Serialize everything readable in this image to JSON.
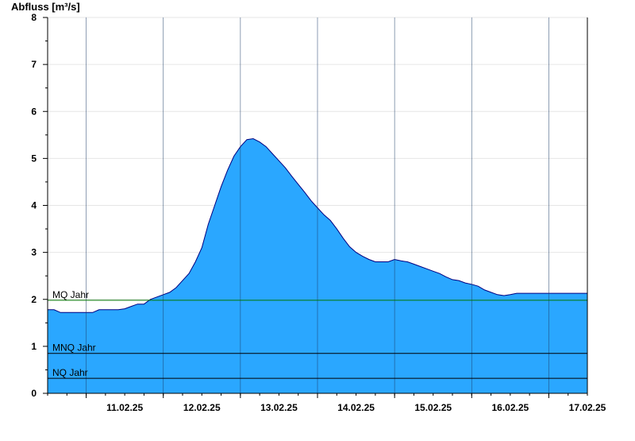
{
  "chart_data": {
    "type": "area",
    "title": "",
    "ylabel": "Abfluss [m³/s]",
    "xlabel": "",
    "ylim": [
      0,
      8
    ],
    "yticks": [
      0,
      1,
      2,
      3,
      4,
      5,
      6,
      7,
      8
    ],
    "x_tick_labels": [
      "11.02.25",
      "12.02.25",
      "13.02.25",
      "14.02.25",
      "15.02.25",
      "16.02.25",
      "17.02.25"
    ],
    "x_range": [
      "2025-02-10T12:00",
      "2025-02-17T12:00"
    ],
    "grid": true,
    "fill_color": "#2aa7ff",
    "line_color": "#000080",
    "series": [
      {
        "x": [
          "2025-02-10T12:00",
          "2025-02-10T14:00",
          "2025-02-10T16:00",
          "2025-02-10T18:00",
          "2025-02-10T20:00",
          "2025-02-10T22:00",
          "2025-02-11T00:00",
          "2025-02-11T02:00",
          "2025-02-11T04:00",
          "2025-02-11T06:00",
          "2025-02-11T08:00",
          "2025-02-11T10:00",
          "2025-02-11T12:00",
          "2025-02-11T14:00",
          "2025-02-11T16:00",
          "2025-02-11T18:00",
          "2025-02-11T20:00",
          "2025-02-11T22:00",
          "2025-02-12T00:00",
          "2025-02-12T02:00",
          "2025-02-12T04:00",
          "2025-02-12T06:00",
          "2025-02-12T08:00",
          "2025-02-12T10:00",
          "2025-02-12T12:00",
          "2025-02-12T14:00",
          "2025-02-12T16:00",
          "2025-02-12T18:00",
          "2025-02-12T20:00",
          "2025-02-12T22:00",
          "2025-02-13T00:00",
          "2025-02-13T02:00",
          "2025-02-13T04:00",
          "2025-02-13T06:00",
          "2025-02-13T08:00",
          "2025-02-13T10:00",
          "2025-02-13T12:00",
          "2025-02-13T14:00",
          "2025-02-13T16:00",
          "2025-02-13T18:00",
          "2025-02-13T20:00",
          "2025-02-13T22:00",
          "2025-02-14T00:00",
          "2025-02-14T02:00",
          "2025-02-14T04:00",
          "2025-02-14T06:00",
          "2025-02-14T08:00",
          "2025-02-14T10:00",
          "2025-02-14T12:00",
          "2025-02-14T14:00",
          "2025-02-14T16:00",
          "2025-02-14T18:00",
          "2025-02-14T20:00",
          "2025-02-14T22:00",
          "2025-02-15T00:00",
          "2025-02-15T02:00",
          "2025-02-15T04:00",
          "2025-02-15T06:00",
          "2025-02-15T08:00",
          "2025-02-15T10:00",
          "2025-02-15T12:00",
          "2025-02-15T14:00",
          "2025-02-15T16:00",
          "2025-02-15T18:00",
          "2025-02-15T20:00",
          "2025-02-15T22:00",
          "2025-02-16T00:00",
          "2025-02-16T02:00",
          "2025-02-16T04:00",
          "2025-02-16T06:00",
          "2025-02-16T08:00",
          "2025-02-16T10:00",
          "2025-02-16T12:00",
          "2025-02-16T14:00",
          "2025-02-16T16:00",
          "2025-02-16T18:00",
          "2025-02-16T20:00",
          "2025-02-16T22:00",
          "2025-02-17T00:00",
          "2025-02-17T02:00",
          "2025-02-17T04:00",
          "2025-02-17T06:00",
          "2025-02-17T08:00",
          "2025-02-17T10:00",
          "2025-02-17T12:00"
        ],
        "values": [
          1.78,
          1.78,
          1.72,
          1.72,
          1.72,
          1.72,
          1.72,
          1.72,
          1.78,
          1.78,
          1.78,
          1.78,
          1.8,
          1.85,
          1.9,
          1.9,
          2.0,
          2.05,
          2.1,
          2.15,
          2.25,
          2.4,
          2.55,
          2.8,
          3.1,
          3.6,
          4.0,
          4.4,
          4.75,
          5.05,
          5.25,
          5.4,
          5.42,
          5.35,
          5.25,
          5.1,
          4.95,
          4.8,
          4.62,
          4.45,
          4.28,
          4.1,
          3.95,
          3.8,
          3.68,
          3.5,
          3.3,
          3.12,
          3.0,
          2.92,
          2.85,
          2.8,
          2.8,
          2.8,
          2.85,
          2.82,
          2.8,
          2.75,
          2.7,
          2.65,
          2.6,
          2.55,
          2.48,
          2.42,
          2.4,
          2.35,
          2.32,
          2.28,
          2.2,
          2.15,
          2.1,
          2.08,
          2.1,
          2.13,
          2.13,
          2.13,
          2.13,
          2.13,
          2.13,
          2.13,
          2.13,
          2.13,
          2.13,
          2.13,
          2.13
        ]
      }
    ],
    "reference_lines": [
      {
        "label": "MQ Jahr",
        "value": 1.98,
        "color": "#007700"
      },
      {
        "label": "MNQ Jahr",
        "value": 0.85,
        "color": "#000000"
      },
      {
        "label": "NQ Jahr",
        "value": 0.32,
        "color": "#000000"
      }
    ]
  }
}
